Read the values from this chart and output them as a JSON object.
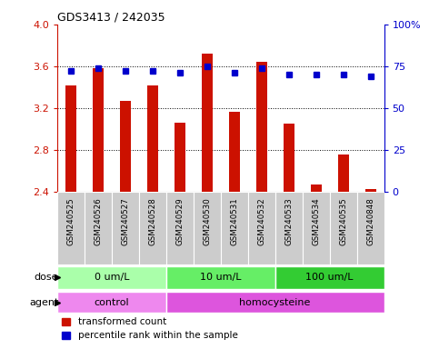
{
  "title": "GDS3413 / 242035",
  "samples": [
    "GSM240525",
    "GSM240526",
    "GSM240527",
    "GSM240528",
    "GSM240529",
    "GSM240530",
    "GSM240531",
    "GSM240532",
    "GSM240533",
    "GSM240534",
    "GSM240535",
    "GSM240848"
  ],
  "transformed_count": [
    3.42,
    3.58,
    3.27,
    3.42,
    3.06,
    3.72,
    3.16,
    3.64,
    3.05,
    2.47,
    2.75,
    2.42
  ],
  "percentile_rank": [
    72,
    74,
    72,
    72,
    71,
    75,
    71,
    74,
    70,
    70,
    70,
    69
  ],
  "ylim_left": [
    2.4,
    4.0
  ],
  "ylim_right": [
    0,
    100
  ],
  "yticks_left": [
    2.4,
    2.8,
    3.2,
    3.6,
    4.0
  ],
  "yticks_right": [
    0,
    25,
    50,
    75,
    100
  ],
  "bar_color": "#cc1100",
  "dot_color": "#0000cc",
  "grid_color": "#000000",
  "background_color": "#ffffff",
  "sample_box_color": "#cccccc",
  "dose_groups": [
    {
      "label": "0 um/L",
      "start": 0,
      "end": 4,
      "color": "#aaffaa"
    },
    {
      "label": "10 um/L",
      "start": 4,
      "end": 8,
      "color": "#66ee66"
    },
    {
      "label": "100 um/L",
      "start": 8,
      "end": 12,
      "color": "#33cc33"
    }
  ],
  "agent_groups": [
    {
      "label": "control",
      "start": 0,
      "end": 4,
      "color": "#ee88ee"
    },
    {
      "label": "homocysteine",
      "start": 4,
      "end": 12,
      "color": "#dd55dd"
    }
  ],
  "dose_label": "dose",
  "agent_label": "agent",
  "legend_items": [
    {
      "label": "transformed count",
      "color": "#cc1100"
    },
    {
      "label": "percentile rank within the sample",
      "color": "#0000cc"
    }
  ]
}
